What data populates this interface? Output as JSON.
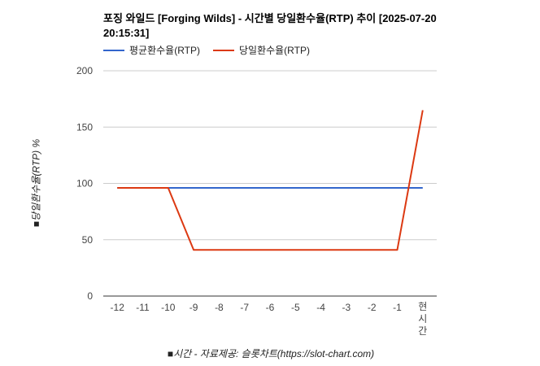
{
  "chart_data": {
    "type": "line",
    "title": "포징 와일드 [Forging Wilds] - 시간별 당일환수율(RTP) 추이 [2025-07-20 20:15:31]",
    "xlabel": "■시간 - 자료제공: 슬롯차트(https://slot-chart.com)",
    "ylabel": "■당일환수율(RTP) %",
    "categories": [
      "-12",
      "-11",
      "-10",
      "-9",
      "-8",
      "-7",
      "-6",
      "-5",
      "-4",
      "-3",
      "-2",
      "-1",
      "현시간"
    ],
    "ylim": [
      0,
      200
    ],
    "yticks": [
      0,
      50,
      100,
      150,
      200
    ],
    "legend_position": "top-left",
    "series": [
      {
        "name": "평균환수율(RTP)",
        "color": "#3366cc",
        "values": [
          96,
          96,
          96,
          96,
          96,
          96,
          96,
          96,
          96,
          96,
          96,
          96,
          96
        ]
      },
      {
        "name": "당일환수율(RTP)",
        "color": "#dc3912",
        "values": [
          96,
          96,
          96,
          41,
          41,
          41,
          41,
          41,
          41,
          41,
          41,
          41,
          165
        ]
      }
    ]
  }
}
